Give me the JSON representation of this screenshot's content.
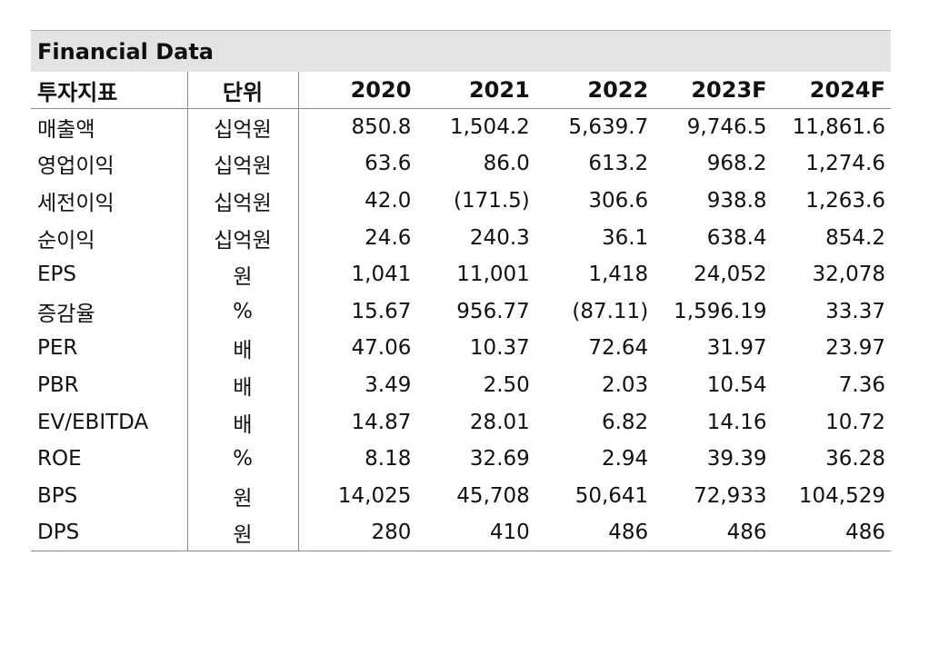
{
  "title": "Financial Data",
  "headers": {
    "label": "투자지표",
    "unit": "단위",
    "years": [
      "2020",
      "2021",
      "2022",
      "2023F",
      "2024F"
    ]
  },
  "rows": [
    {
      "label": "매출액",
      "unit": "십억원",
      "values": [
        "850.8",
        "1,504.2",
        "5,639.7",
        "9,746.5",
        "11,861.6"
      ]
    },
    {
      "label": "영업이익",
      "unit": "십억원",
      "values": [
        "63.6",
        "86.0",
        "613.2",
        "968.2",
        "1,274.6"
      ]
    },
    {
      "label": "세전이익",
      "unit": "십억원",
      "values": [
        "42.0",
        "(171.5)",
        "306.6",
        "938.8",
        "1,263.6"
      ]
    },
    {
      "label": "순이익",
      "unit": "십억원",
      "values": [
        "24.6",
        "240.3",
        "36.1",
        "638.4",
        "854.2"
      ]
    },
    {
      "label": "EPS",
      "unit": "원",
      "values": [
        "1,041",
        "11,001",
        "1,418",
        "24,052",
        "32,078"
      ]
    },
    {
      "label": "증감율",
      "unit": "%",
      "values": [
        "15.67",
        "956.77",
        "(87.11)",
        "1,596.19",
        "33.37"
      ]
    },
    {
      "label": "PER",
      "unit": "배",
      "values": [
        "47.06",
        "10.37",
        "72.64",
        "31.97",
        "23.97"
      ]
    },
    {
      "label": "PBR",
      "unit": "배",
      "values": [
        "3.49",
        "2.50",
        "2.03",
        "10.54",
        "7.36"
      ]
    },
    {
      "label": "EV/EBITDA",
      "unit": "배",
      "values": [
        "14.87",
        "28.01",
        "6.82",
        "14.16",
        "10.72"
      ]
    },
    {
      "label": "ROE",
      "unit": "%",
      "values": [
        "8.18",
        "32.69",
        "2.94",
        "39.39",
        "36.28"
      ]
    },
    {
      "label": "BPS",
      "unit": "원",
      "values": [
        "14,025",
        "45,708",
        "50,641",
        "72,933",
        "104,529"
      ]
    },
    {
      "label": "DPS",
      "unit": "원",
      "values": [
        "280",
        "410",
        "486",
        "486",
        "486"
      ]
    }
  ]
}
